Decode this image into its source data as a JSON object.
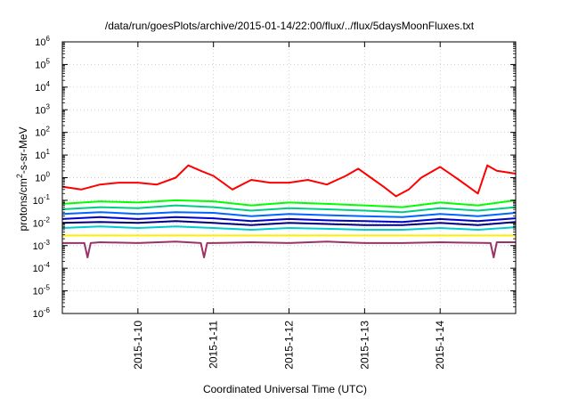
{
  "chart_data": {
    "type": "line",
    "title": "/data/run/goesPlots/archive/2015-01-14/22:00/flux/../flux/5daysMoonFluxes.txt",
    "xlabel": "Coordinated Universal Time (UTC)",
    "ylabel": {
      "base": "protons/cm",
      "sup": "2",
      "rest": "-s-sr-MeV"
    },
    "y_scale": "log",
    "ylim": [
      1e-06,
      1000000.0
    ],
    "xlim": [
      "2015-01-09 00:00",
      "2015-01-14 23:59"
    ],
    "grid": true,
    "legend": "none",
    "x_ticks": [
      {
        "date": "2015-01-10 00:00",
        "label": "2015-1-10"
      },
      {
        "date": "2015-01-11 00:00",
        "label": "2015-1-11"
      },
      {
        "date": "2015-01-12 00:00",
        "label": "2015-1-12"
      },
      {
        "date": "2015-01-13 00:00",
        "label": "2015-1-13"
      },
      {
        "date": "2015-01-14 00:00",
        "label": "2015-1-14"
      }
    ],
    "y_ticks": [
      {
        "exp": "-6",
        "label": "10"
      },
      {
        "exp": "-5",
        "label": "10"
      },
      {
        "exp": "-4",
        "label": "10"
      },
      {
        "exp": "-3",
        "label": "10"
      },
      {
        "exp": "-2",
        "label": "10"
      },
      {
        "exp": "-1",
        "label": "10"
      },
      {
        "exp": "0",
        "label": "10"
      },
      {
        "exp": "1",
        "label": "10"
      },
      {
        "exp": "2",
        "label": "10"
      },
      {
        "exp": "3",
        "label": "10"
      },
      {
        "exp": "4",
        "label": "10"
      },
      {
        "exp": "5",
        "label": "10"
      },
      {
        "exp": "6",
        "label": "10"
      }
    ],
    "series": [
      {
        "color": "#ff0000",
        "x": [
          "2015-01-09 00:00",
          "2015-01-09 06:00",
          "2015-01-09 12:00",
          "2015-01-09 18:00",
          "2015-01-10 00:00",
          "2015-01-10 06:00",
          "2015-01-10 12:00",
          "2015-01-10 16:00",
          "2015-01-10 20:00",
          "2015-01-11 00:00",
          "2015-01-11 06:00",
          "2015-01-11 12:00",
          "2015-01-11 18:00",
          "2015-01-12 00:00",
          "2015-01-12 06:00",
          "2015-01-12 12:00",
          "2015-01-12 18:00",
          "2015-01-12 22:00",
          "2015-01-13 02:00",
          "2015-01-13 06:00",
          "2015-01-13 10:00",
          "2015-01-13 14:00",
          "2015-01-13 18:00",
          "2015-01-14 00:00",
          "2015-01-14 06:00",
          "2015-01-14 12:00",
          "2015-01-14 15:00",
          "2015-01-14 18:00",
          "2015-01-14 23:59"
        ],
        "values": [
          0.4,
          0.3,
          0.5,
          0.6,
          0.6,
          0.5,
          1.0,
          3.5,
          2.0,
          1.2,
          0.3,
          0.8,
          0.6,
          0.6,
          0.8,
          0.5,
          1.2,
          2.5,
          1.0,
          0.4,
          0.15,
          0.3,
          1.0,
          3.0,
          0.8,
          0.2,
          3.5,
          2.0,
          1.5
        ]
      },
      {
        "color": "#00ff00",
        "x": [
          "2015-01-09 00:00",
          "2015-01-09 12:00",
          "2015-01-10 00:00",
          "2015-01-10 12:00",
          "2015-01-11 00:00",
          "2015-01-11 12:00",
          "2015-01-12 00:00",
          "2015-01-12 12:00",
          "2015-01-13 00:00",
          "2015-01-13 12:00",
          "2015-01-14 00:00",
          "2015-01-14 12:00",
          "2015-01-14 23:59"
        ],
        "values": [
          0.07,
          0.09,
          0.08,
          0.1,
          0.09,
          0.06,
          0.08,
          0.07,
          0.06,
          0.05,
          0.08,
          0.06,
          0.1
        ]
      },
      {
        "color": "#00cc88",
        "x": [
          "2015-01-09 00:00",
          "2015-01-09 12:00",
          "2015-01-10 00:00",
          "2015-01-10 12:00",
          "2015-01-11 00:00",
          "2015-01-11 12:00",
          "2015-01-12 00:00",
          "2015-01-12 12:00",
          "2015-01-13 00:00",
          "2015-01-13 12:00",
          "2015-01-14 00:00",
          "2015-01-14 12:00",
          "2015-01-14 23:59"
        ],
        "values": [
          0.04,
          0.05,
          0.045,
          0.06,
          0.05,
          0.035,
          0.045,
          0.04,
          0.035,
          0.03,
          0.045,
          0.035,
          0.05
        ]
      },
      {
        "color": "#0066ff",
        "x": [
          "2015-01-09 00:00",
          "2015-01-09 12:00",
          "2015-01-10 00:00",
          "2015-01-10 12:00",
          "2015-01-11 00:00",
          "2015-01-11 12:00",
          "2015-01-12 00:00",
          "2015-01-12 12:00",
          "2015-01-13 00:00",
          "2015-01-13 12:00",
          "2015-01-14 00:00",
          "2015-01-14 12:00",
          "2015-01-14 23:59"
        ],
        "values": [
          0.025,
          0.03,
          0.025,
          0.03,
          0.028,
          0.02,
          0.025,
          0.022,
          0.02,
          0.018,
          0.025,
          0.02,
          0.028
        ]
      },
      {
        "color": "#0000cc",
        "x": [
          "2015-01-09 00:00",
          "2015-01-09 12:00",
          "2015-01-10 00:00",
          "2015-01-10 12:00",
          "2015-01-11 00:00",
          "2015-01-11 12:00",
          "2015-01-12 00:00",
          "2015-01-12 12:00",
          "2015-01-13 00:00",
          "2015-01-13 12:00",
          "2015-01-14 00:00",
          "2015-01-14 12:00",
          "2015-01-14 23:59"
        ],
        "values": [
          0.015,
          0.018,
          0.015,
          0.018,
          0.016,
          0.012,
          0.015,
          0.013,
          0.012,
          0.011,
          0.015,
          0.012,
          0.016
        ]
      },
      {
        "color": "#000080",
        "x": [
          "2015-01-09 00:00",
          "2015-01-09 12:00",
          "2015-01-10 00:00",
          "2015-01-10 12:00",
          "2015-01-11 00:00",
          "2015-01-11 12:00",
          "2015-01-12 00:00",
          "2015-01-12 12:00",
          "2015-01-13 00:00",
          "2015-01-13 12:00",
          "2015-01-14 00:00",
          "2015-01-14 12:00",
          "2015-01-14 23:59"
        ],
        "values": [
          0.01,
          0.011,
          0.01,
          0.012,
          0.01,
          0.008,
          0.01,
          0.009,
          0.008,
          0.008,
          0.01,
          0.008,
          0.011
        ]
      },
      {
        "color": "#00cccc",
        "x": [
          "2015-01-09 00:00",
          "2015-01-09 12:00",
          "2015-01-10 00:00",
          "2015-01-10 12:00",
          "2015-01-11 00:00",
          "2015-01-11 12:00",
          "2015-01-12 00:00",
          "2015-01-12 12:00",
          "2015-01-13 00:00",
          "2015-01-13 12:00",
          "2015-01-14 00:00",
          "2015-01-14 12:00",
          "2015-01-14 23:59"
        ],
        "values": [
          0.006,
          0.007,
          0.006,
          0.007,
          0.006,
          0.005,
          0.006,
          0.0055,
          0.005,
          0.005,
          0.006,
          0.005,
          0.0065
        ]
      },
      {
        "color": "#ffee00",
        "x": [
          "2015-01-09 00:00",
          "2015-01-09 12:00",
          "2015-01-10 00:00",
          "2015-01-10 12:00",
          "2015-01-11 00:00",
          "2015-01-11 12:00",
          "2015-01-12 00:00",
          "2015-01-12 12:00",
          "2015-01-13 00:00",
          "2015-01-13 12:00",
          "2015-01-14 00:00",
          "2015-01-14 12:00",
          "2015-01-14 23:59"
        ],
        "values": [
          0.0028,
          0.0028,
          0.0028,
          0.0028,
          0.0028,
          0.0028,
          0.0028,
          0.0028,
          0.0028,
          0.0028,
          0.0028,
          0.0028,
          0.0028
        ]
      },
      {
        "color": "#993366",
        "x": [
          "2015-01-09 00:00",
          "2015-01-09 07:00",
          "2015-01-09 08:00",
          "2015-01-09 09:00",
          "2015-01-09 12:00",
          "2015-01-10 00:00",
          "2015-01-10 12:00",
          "2015-01-10 20:00",
          "2015-01-10 21:00",
          "2015-01-10 22:00",
          "2015-01-11 00:00",
          "2015-01-11 12:00",
          "2015-01-12 00:00",
          "2015-01-12 12:00",
          "2015-01-13 00:00",
          "2015-01-13 12:00",
          "2015-01-14 00:00",
          "2015-01-14 16:00",
          "2015-01-14 17:00",
          "2015-01-14 18:00",
          "2015-01-14 23:59"
        ],
        "values": [
          0.0013,
          0.0013,
          0.0003,
          0.0013,
          0.0014,
          0.0013,
          0.0015,
          0.0013,
          0.0003,
          0.0013,
          0.0013,
          0.0014,
          0.0013,
          0.0015,
          0.0013,
          0.0013,
          0.0014,
          0.0013,
          0.0003,
          0.0014,
          0.0014
        ]
      }
    ]
  }
}
